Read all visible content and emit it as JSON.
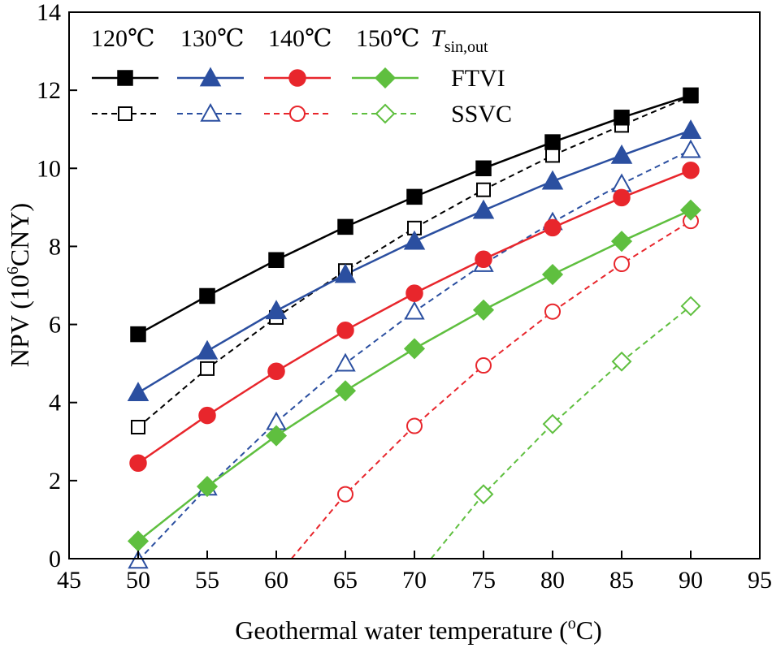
{
  "chart_data": {
    "type": "line",
    "xlabel": "Geothermal water temperature (",
    "xlabel_degree": "o",
    "xlabel_unit": "C)",
    "ylabel_pre": "NPV (10",
    "ylabel_sup": "6",
    "ylabel_post": "CNY)",
    "xlim": [
      45,
      95
    ],
    "ylim": [
      0,
      14
    ],
    "xticks": [
      45,
      50,
      55,
      60,
      65,
      70,
      75,
      80,
      85,
      90,
      95
    ],
    "yticks": [
      0,
      2,
      4,
      6,
      8,
      10,
      12,
      14
    ],
    "x": [
      50,
      55,
      60,
      65,
      70,
      75,
      80,
      85,
      90
    ],
    "legend": {
      "temps": [
        "120℃",
        "130℃",
        "140℃",
        "150℃"
      ],
      "var_main": "T",
      "var_sub": "sin,out",
      "row_labels": [
        "FTVI",
        "SSVC"
      ]
    },
    "groups": [
      {
        "temp": "120℃",
        "color": "#000000",
        "marker": "square",
        "FTVI": [
          5.75,
          6.73,
          7.65,
          8.5,
          9.27,
          10.0,
          10.67,
          11.3,
          11.87
        ],
        "SSVC": [
          3.37,
          4.87,
          6.18,
          7.38,
          8.47,
          9.45,
          10.33,
          11.1,
          11.85
        ]
      },
      {
        "temp": "130℃",
        "color": "#2b4fa0",
        "marker": "triangle",
        "FTVI": [
          4.25,
          5.32,
          6.35,
          7.28,
          8.13,
          8.92,
          9.67,
          10.33,
          10.97
        ],
        "SSVC": [
          -0.05,
          1.82,
          3.5,
          5.0,
          6.33,
          7.55,
          8.62,
          9.6,
          10.47
        ]
      },
      {
        "temp": "140℃",
        "color": "#e8262c",
        "marker": "circle",
        "FTVI": [
          2.45,
          3.67,
          4.8,
          5.85,
          6.8,
          7.67,
          8.48,
          9.25,
          9.95
        ],
        "SSVC": [
          null,
          null,
          null,
          1.65,
          3.4,
          4.95,
          6.33,
          7.55,
          8.65
        ],
        "SSVC_line_start": [
          61.1,
          0
        ]
      },
      {
        "temp": "150℃",
        "color": "#5fbf3f",
        "marker": "diamond",
        "FTVI": [
          0.45,
          1.85,
          3.15,
          4.3,
          5.38,
          6.37,
          7.28,
          8.13,
          8.93
        ],
        "SSVC": [
          null,
          null,
          null,
          null,
          null,
          1.65,
          3.45,
          5.05,
          6.47
        ],
        "SSVC_line_start": [
          71.2,
          0
        ]
      }
    ]
  }
}
